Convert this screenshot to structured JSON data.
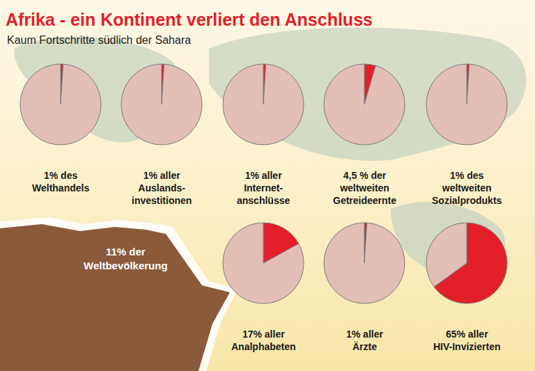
{
  "title": "Afrika - ein Kontinent verliert den Anschluss",
  "subtitle": "Kaum Fortschritte südlich der Sahara",
  "map_label": "11% der\nWeltbevölkerung",
  "chart_data": [
    {
      "type": "pie",
      "title": "1% des\nWelthandels",
      "values": [
        1,
        99
      ],
      "colors": [
        "#e3202a",
        "#e2beb5"
      ]
    },
    {
      "type": "pie",
      "title": "1% aller\nAuslands-\ninvestitionen",
      "values": [
        1,
        99
      ],
      "colors": [
        "#e3202a",
        "#e2beb5"
      ]
    },
    {
      "type": "pie",
      "title": "1% aller\nInternet-\nanschlüsse",
      "values": [
        1,
        99
      ],
      "colors": [
        "#e3202a",
        "#e2beb5"
      ]
    },
    {
      "type": "pie",
      "title": "4,5 % der\nweltweiten\nGetreideernte",
      "values": [
        4.5,
        95.5
      ],
      "colors": [
        "#e3202a",
        "#e2beb5"
      ]
    },
    {
      "type": "pie",
      "title": "1% des\nweltweiten\nSozialprodukts",
      "values": [
        1,
        99
      ],
      "colors": [
        "#e3202a",
        "#e2beb5"
      ]
    },
    {
      "type": "pie",
      "title": "17% aller\nAnalphabeten",
      "values": [
        17,
        83
      ],
      "colors": [
        "#e3202a",
        "#e2beb5"
      ]
    },
    {
      "type": "pie",
      "title": "1% aller\nÄrzte",
      "values": [
        1,
        99
      ],
      "colors": [
        "#e3202a",
        "#e2beb5"
      ]
    },
    {
      "type": "pie",
      "title": "65% aller\nHIV-Invizierten",
      "values": [
        65,
        35
      ],
      "colors": [
        "#e3202a",
        "#e2beb5"
      ]
    }
  ]
}
